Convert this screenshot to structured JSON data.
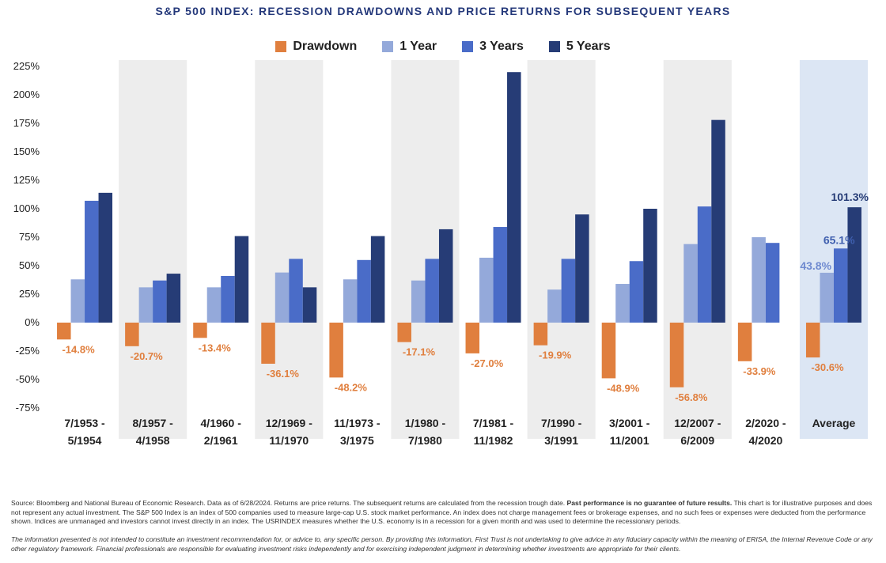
{
  "chart_data": {
    "type": "bar",
    "title": "S&P 500 INDEX: RECESSION DRAWDOWNS AND PRICE RETURNS FOR SUBSEQUENT YEARS",
    "categories": [
      [
        "7/1953 -",
        "5/1954"
      ],
      [
        "8/1957 -",
        "4/1958"
      ],
      [
        "4/1960 -",
        "2/1961"
      ],
      [
        "12/1969 -",
        "11/1970"
      ],
      [
        "11/1973 -",
        "3/1975"
      ],
      [
        "1/1980 -",
        "7/1980"
      ],
      [
        "7/1981 -",
        "11/1982"
      ],
      [
        "7/1990 -",
        "3/1991"
      ],
      [
        "3/2001 -",
        "11/2001"
      ],
      [
        "12/2007 -",
        "6/2009"
      ],
      [
        "2/2020 -",
        "4/2020"
      ],
      [
        "Average"
      ]
    ],
    "series": [
      {
        "name": "Drawdown",
        "color": "#e07f3e",
        "values": [
          -14.8,
          -20.7,
          -13.4,
          -36.1,
          -48.2,
          -17.1,
          -27.0,
          -19.9,
          -48.9,
          -56.8,
          -33.9,
          -30.6
        ]
      },
      {
        "name": "1 Year",
        "color": "#94a9da",
        "values": [
          38,
          31,
          31,
          44,
          38,
          37,
          57,
          29,
          34,
          69,
          75,
          43.8
        ]
      },
      {
        "name": "3 Years",
        "color": "#4a6cc8",
        "values": [
          107,
          37,
          41,
          56,
          55,
          56,
          84,
          56,
          54,
          102,
          70,
          65.1
        ]
      },
      {
        "name": "5 Years",
        "color": "#263c76",
        "values": [
          114,
          43,
          76,
          31,
          76,
          82,
          220,
          95,
          100,
          178,
          null,
          101.3
        ]
      }
    ],
    "drawdown_labels": [
      "-14.8%",
      "-20.7%",
      "-13.4%",
      "-36.1%",
      "-48.2%",
      "-17.1%",
      "-27.0%",
      "-19.9%",
      "-48.9%",
      "-56.8%",
      "-33.9%",
      "-30.6%"
    ],
    "average_labels": {
      "one_year": "43.8%",
      "three_years": "65.1%",
      "five_years": "101.3%"
    },
    "yticks": [
      "225%",
      "200%",
      "175%",
      "150%",
      "125%",
      "100%",
      "75%",
      "50%",
      "25%",
      "0%",
      "-25%",
      "-50%",
      "-75%"
    ],
    "ylim": [
      -75,
      225
    ],
    "grid": false,
    "legend_position": "top-center",
    "shaded_bands": "alternating",
    "colors": {
      "band": "#ededed",
      "average_band": "#dce6f4",
      "title": "#24387a",
      "drawdown_label": "#e07f3e"
    }
  },
  "footnote": {
    "source_text": "Source: Bloomberg and National Bureau of Economic Research. Data as of 6/28/2024. Returns are price returns. The subsequent returns are calculated from the recession trough date. ",
    "bold_text": "Past performance is no guarantee of future results.",
    "rest_text": " This chart is for illustrative purposes and does not represent any actual investment. The S&P 500 Index is an index of 500 companies used to measure large-cap U.S. stock market performance. An index does not charge management fees or brokerage expenses, and no such fees or expenses were deducted from the performance shown. Indices are unmanaged and investors cannot invest directly in an index. The USRINDEX measures whether the U.S. economy is in a recession for a given month and was used to determine the recessionary periods."
  },
  "disclaimer": "The information presented is not intended to constitute an investment recommendation for, or advice to, any specific person. By providing this information, First Trust is not undertaking to give advice in any fiduciary capacity within the meaning of ERISA, the Internal Revenue Code or any other regulatory framework. Financial professionals are responsible for evaluating investment risks independently and for exercising independent judgment in determining whether investments are appropriate for their clients."
}
